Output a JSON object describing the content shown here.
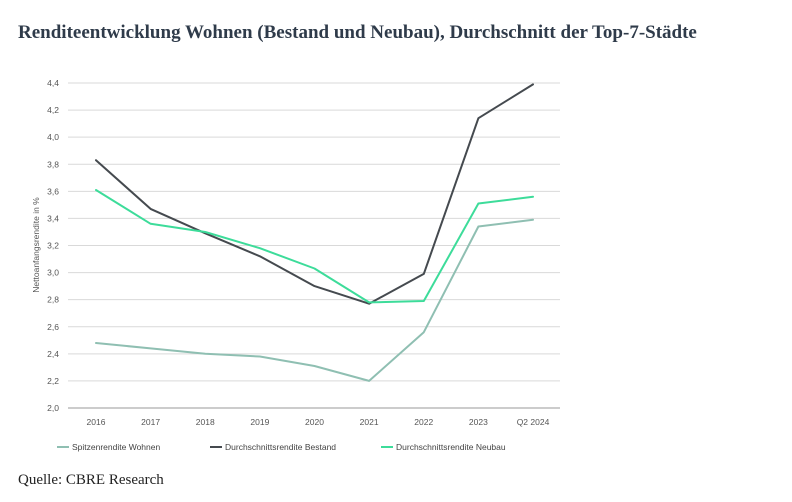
{
  "title": "Renditeentwicklung Wohnen (Bestand und Neubau), Durchschnitt der Top-7-Städte",
  "source": "Quelle: CBRE Research",
  "chart_data": {
    "type": "line",
    "ylabel": "Nettoanfangsrendite in %",
    "ylim": [
      2.0,
      4.4
    ],
    "yticks": [
      "2,0",
      "2,2",
      "2,4",
      "2,6",
      "2,8",
      "3,0",
      "3,2",
      "3,4",
      "3,6",
      "3,8",
      "4,0",
      "4,2",
      "4,4"
    ],
    "ytick_values": [
      2.0,
      2.2,
      2.4,
      2.6,
      2.8,
      3.0,
      3.2,
      3.4,
      3.6,
      3.8,
      4.0,
      4.2,
      4.4
    ],
    "categories": [
      "2016",
      "2017",
      "2018",
      "2019",
      "2020",
      "2021",
      "2022",
      "2023",
      "Q2 2024"
    ],
    "grid": true,
    "legend_position": "bottom",
    "series": [
      {
        "name": "Spitzenrendite Wohnen",
        "color": "#8fbfb2",
        "values": [
          2.48,
          2.44,
          2.4,
          2.38,
          2.31,
          2.2,
          2.56,
          3.34,
          3.39
        ]
      },
      {
        "name": "Durchschnittsrendite Bestand",
        "color": "#454a4f",
        "values": [
          3.83,
          3.47,
          3.29,
          3.12,
          2.9,
          2.77,
          2.99,
          4.14,
          4.39
        ]
      },
      {
        "name": "Durchschnittsrendite Neubau",
        "color": "#3ddc9a",
        "values": [
          3.61,
          3.36,
          3.3,
          3.18,
          3.03,
          2.78,
          2.79,
          3.51,
          3.56
        ]
      }
    ]
  }
}
